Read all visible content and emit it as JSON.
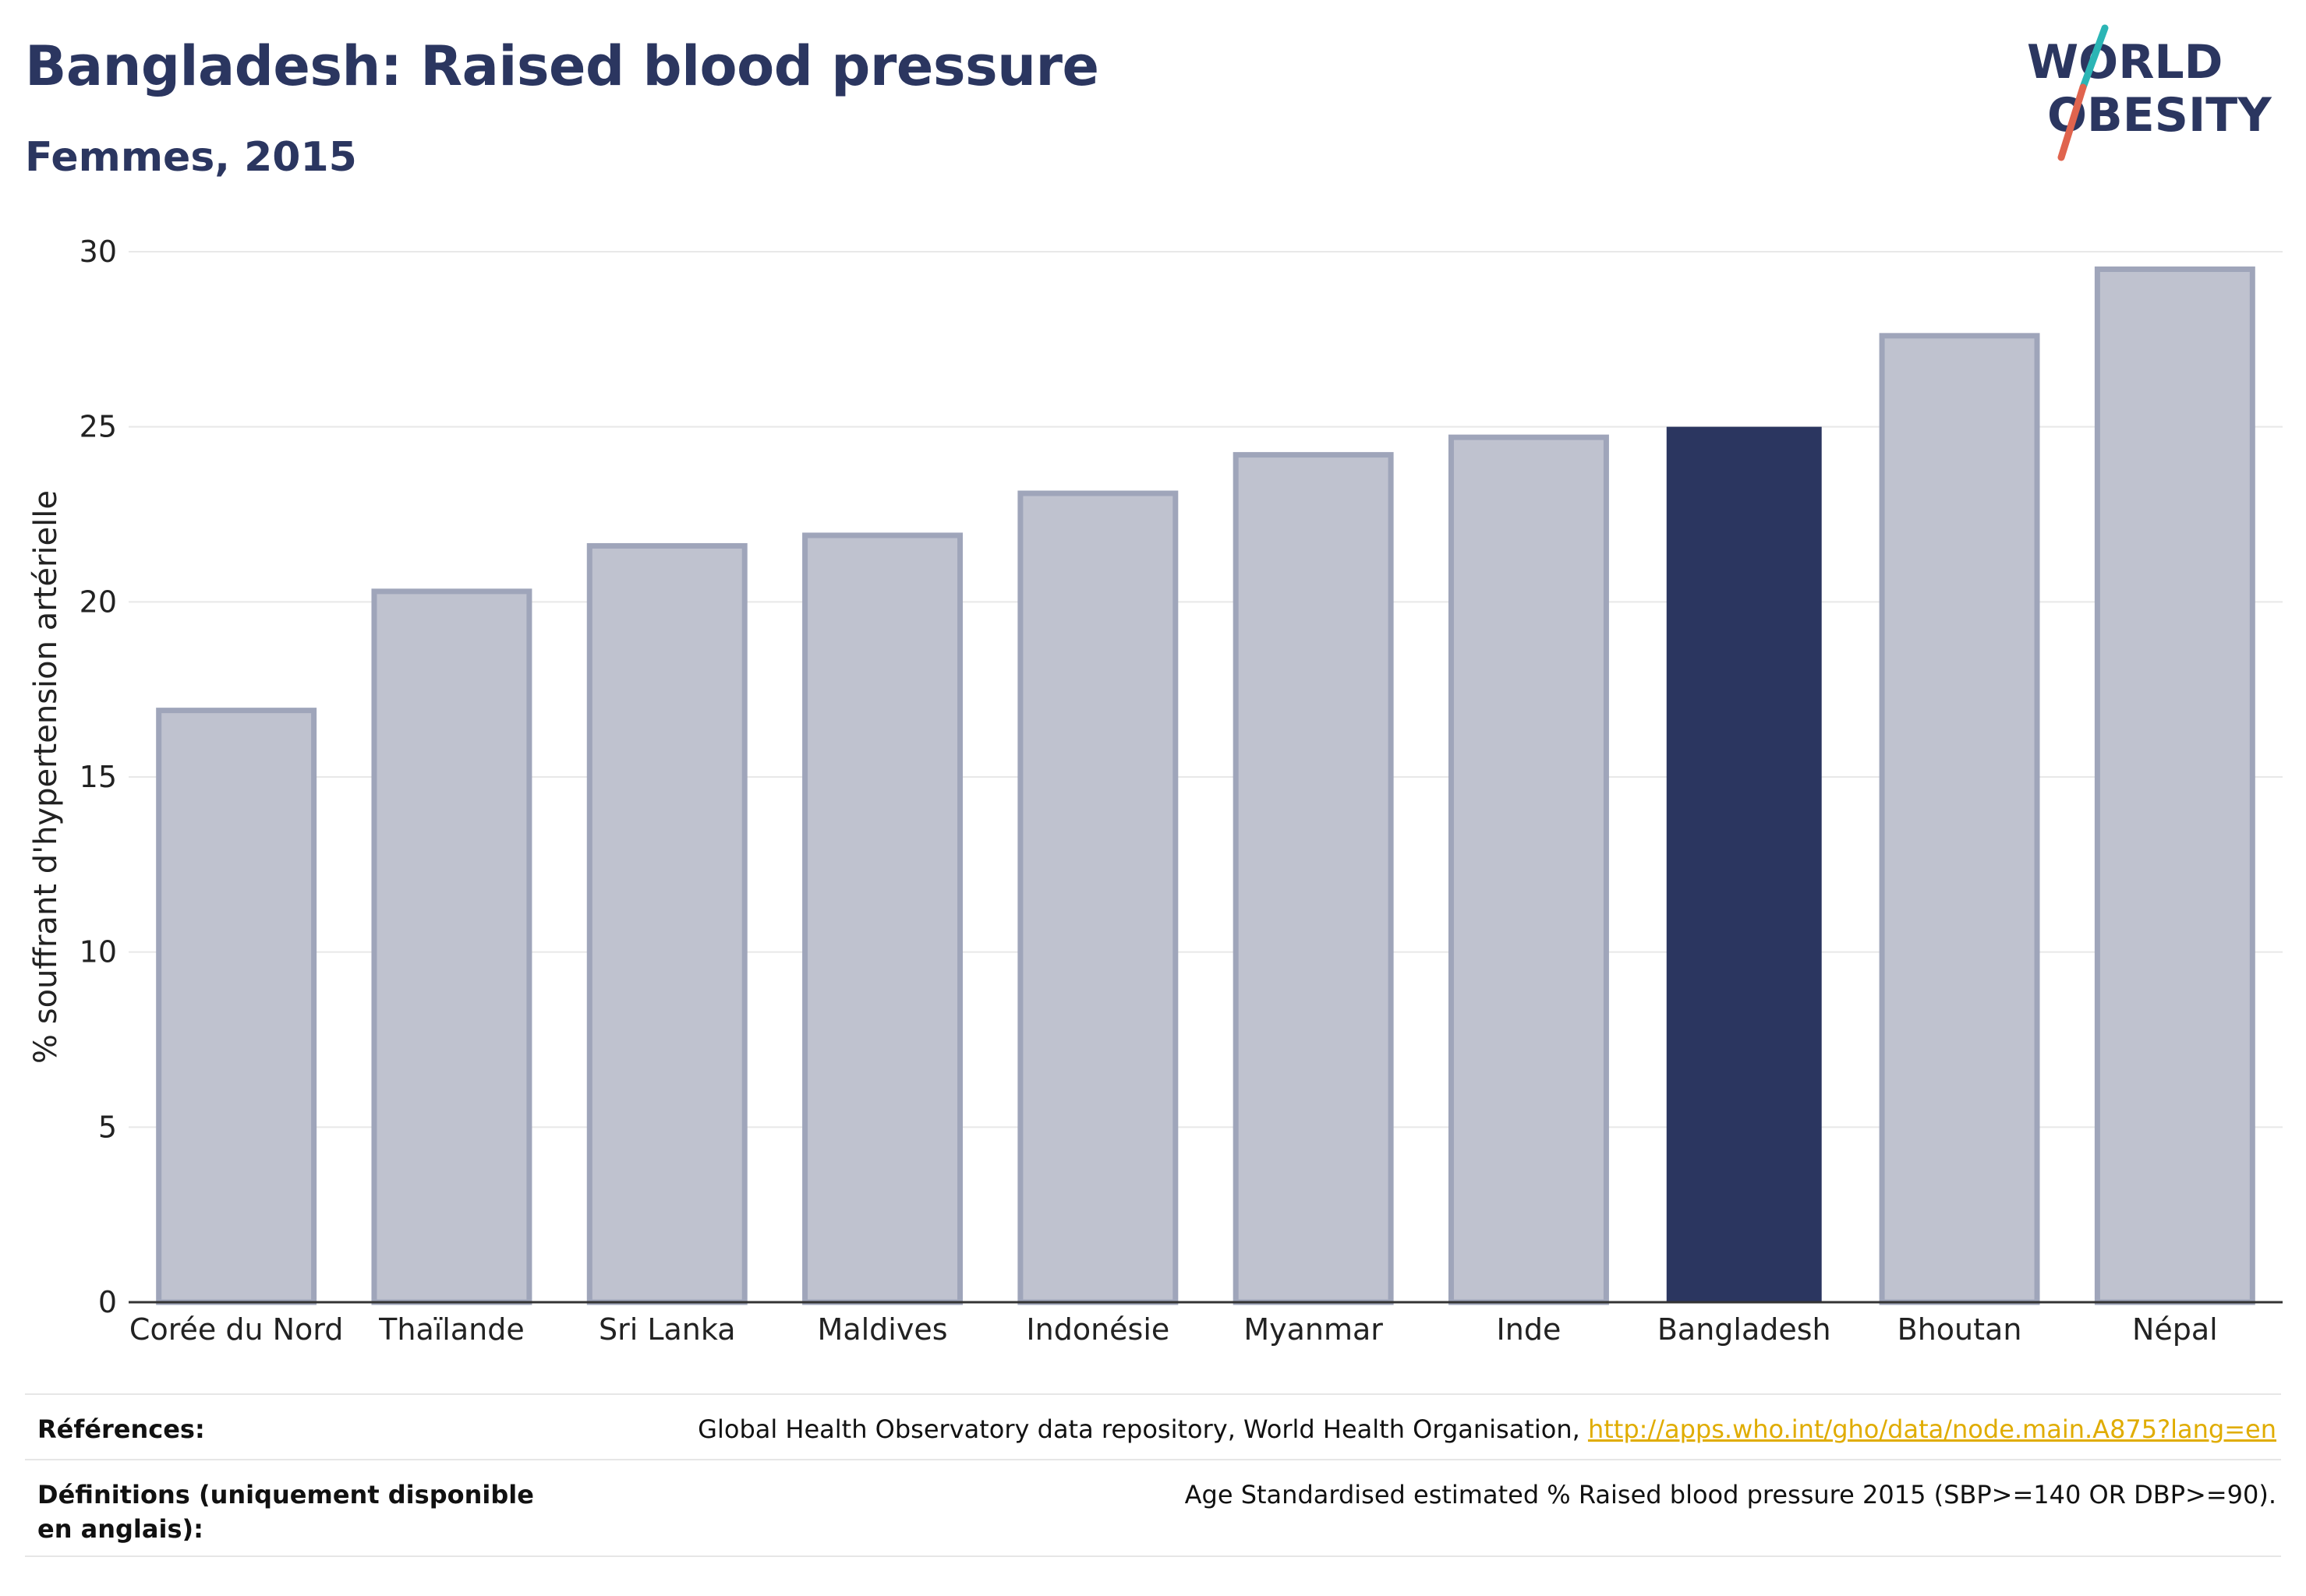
{
  "header": {
    "title": "Bangladesh: Raised blood pressure",
    "subtitle": "Femmes, 2015"
  },
  "logo": {
    "line1": "WORLD",
    "line2": "OBESITY",
    "text_color": "#2b3660",
    "slash_colors": [
      "#2bb5b5",
      "#e0644e"
    ]
  },
  "chart_data": {
    "type": "bar",
    "categories": [
      "Corée du Nord",
      "Thaïlande",
      "Sri Lanka",
      "Maldives",
      "Indonésie",
      "Myanmar",
      "Inde",
      "Bangladesh",
      "Bhoutan",
      "Népal"
    ],
    "values": [
      16.9,
      20.3,
      21.6,
      21.9,
      23.1,
      24.2,
      24.7,
      25.0,
      27.6,
      29.5
    ],
    "highlight": "Bangladesh",
    "title": "",
    "xlabel": "",
    "ylabel": "% souffrant d'hypertension artérielle",
    "ylim": [
      0,
      30
    ],
    "yticks": [
      0,
      5,
      10,
      15,
      20,
      25,
      30
    ],
    "grid": true,
    "colors": {
      "bar": "#bfc2cf",
      "bar_edge": "#9fa5ba",
      "highlight": "#2b3660",
      "grid": "#e8e8e8",
      "axis": "#333333"
    }
  },
  "references": {
    "sources_label": "Références:",
    "sources_text": "Global Health Observatory data repository, World Health Organisation,",
    "sources_link": "http://apps.who.int/gho/data/node.main.A875?lang=en",
    "definitions_label": "Définitions (uniquement disponible en anglais):",
    "definitions_text": "Age Standardised estimated % Raised blood pressure 2015 (SBP>=140 OR DBP>=90)."
  }
}
